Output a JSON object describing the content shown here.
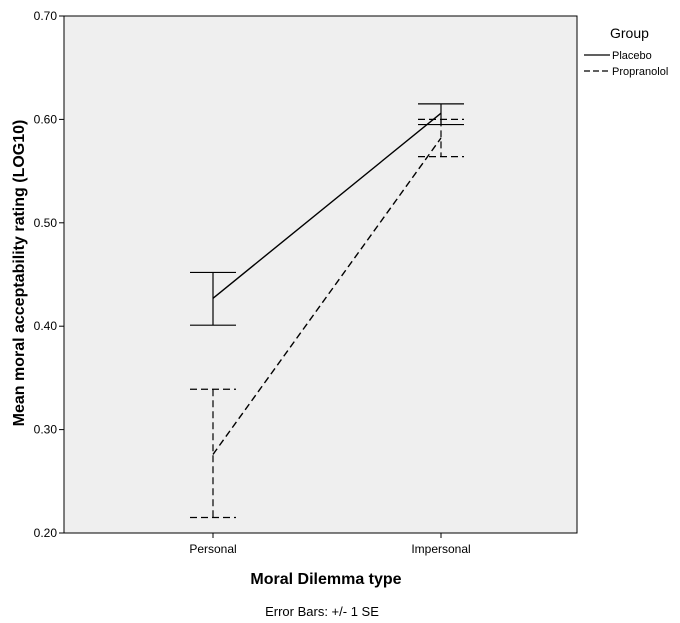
{
  "chart_data": {
    "type": "line",
    "title": "",
    "xlabel": "Moral Dilemma type",
    "ylabel": "Mean moral acceptability rating (LOG10)",
    "footnote": "Error Bars: +/- 1 SE",
    "categories": [
      "Personal",
      "Impersonal"
    ],
    "ylim": [
      0.2,
      0.7
    ],
    "yticks": [
      "0.20",
      "0.30",
      "0.40",
      "0.50",
      "0.60",
      "0.70"
    ],
    "grid": false,
    "legend": {
      "title": "Group",
      "position": "top-right"
    },
    "colors": {
      "plot_bg": "#efefef",
      "line": "#000000"
    },
    "series": [
      {
        "name": "Placebo",
        "style": "solid",
        "values": [
          0.427,
          0.606
        ],
        "error_low": [
          0.401,
          0.595
        ],
        "error_high": [
          0.452,
          0.615
        ]
      },
      {
        "name": "Propranolol",
        "style": "dashed",
        "values": [
          0.276,
          0.582
        ],
        "error_low": [
          0.215,
          0.564
        ],
        "error_high": [
          0.339,
          0.6
        ]
      }
    ]
  }
}
